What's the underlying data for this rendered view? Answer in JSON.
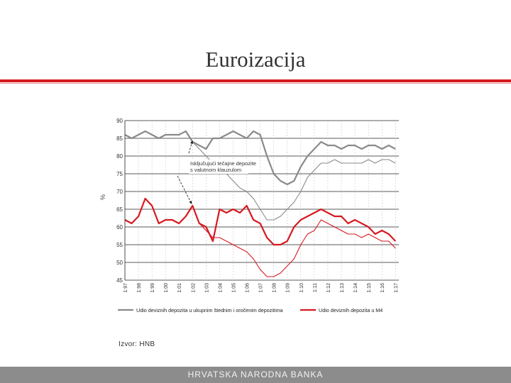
{
  "slide": {
    "title": "Euroizacija",
    "source": "Izvor: HNB",
    "footer": "HRVATSKA NARODNA BANKA"
  },
  "colors": {
    "accent": "#d71920",
    "grey_series": "#8a8a8a",
    "red_series": "#d71920",
    "footer_bg": "#8c8c8c"
  },
  "chart_data": {
    "type": "line",
    "ylabel": "%",
    "ylim": [
      45,
      90
    ],
    "yticks": [
      45,
      50,
      55,
      60,
      65,
      70,
      75,
      80,
      85,
      90
    ],
    "xlim": [
      1997,
      2017.25
    ],
    "xticks": [
      "1:97",
      "1:98",
      "1:99",
      "1:00",
      "1:01",
      "1:02",
      "1:03",
      "1:04",
      "1:05",
      "1:06",
      "1:07",
      "1:08",
      "1:09",
      "1:10",
      "1:11",
      "1:12",
      "1:13",
      "1:14",
      "1:15",
      "1:16",
      "1:17"
    ],
    "grid": true,
    "annotation": "Isključujući tečajne depozite s valutnom klauzulom",
    "legend_position": "bottom",
    "series": [
      {
        "name": "Udio deviznih depozita u ukupnim štednim i oročenim depozitima",
        "color": "grey",
        "style": "thick",
        "points": [
          [
            1997,
            86
          ],
          [
            1997.5,
            85
          ],
          [
            1998,
            86
          ],
          [
            1998.5,
            87
          ],
          [
            1999,
            86
          ],
          [
            1999.5,
            85
          ],
          [
            2000,
            86
          ],
          [
            2000.5,
            86
          ],
          [
            2001,
            86
          ],
          [
            2001.5,
            87
          ],
          [
            2002,
            84
          ],
          [
            2002.5,
            83
          ],
          [
            2003,
            82
          ],
          [
            2003.5,
            85
          ],
          [
            2004,
            85
          ],
          [
            2004.5,
            86
          ],
          [
            2005,
            87
          ],
          [
            2005.5,
            86
          ],
          [
            2006,
            85
          ],
          [
            2006.5,
            87
          ],
          [
            2007,
            86
          ],
          [
            2007.5,
            80
          ],
          [
            2008,
            75
          ],
          [
            2008.5,
            73
          ],
          [
            2009,
            72
          ],
          [
            2009.5,
            73
          ],
          [
            2010,
            77
          ],
          [
            2010.5,
            80
          ],
          [
            2011,
            82
          ],
          [
            2011.5,
            84
          ],
          [
            2012,
            83
          ],
          [
            2012.5,
            83
          ],
          [
            2013,
            82
          ],
          [
            2013.5,
            83
          ],
          [
            2014,
            83
          ],
          [
            2014.5,
            82
          ],
          [
            2015,
            83
          ],
          [
            2015.5,
            83
          ],
          [
            2016,
            82
          ],
          [
            2016.5,
            83
          ],
          [
            2017,
            82
          ]
        ]
      },
      {
        "name": "Isključujući tečajne depozite s valutnom klauzulom",
        "color": "grey",
        "style": "thin",
        "points": [
          [
            2002,
            84
          ],
          [
            2002.5,
            82
          ],
          [
            2003,
            80
          ],
          [
            2003.5,
            78
          ],
          [
            2004,
            76
          ],
          [
            2004.5,
            75
          ],
          [
            2005,
            73
          ],
          [
            2005.5,
            71
          ],
          [
            2006,
            70
          ],
          [
            2006.5,
            68
          ],
          [
            2007,
            65
          ],
          [
            2007.5,
            62
          ],
          [
            2008,
            62
          ],
          [
            2008.5,
            63
          ],
          [
            2009,
            65
          ],
          [
            2009.5,
            67
          ],
          [
            2010,
            70
          ],
          [
            2010.5,
            74
          ],
          [
            2011,
            76
          ],
          [
            2011.5,
            78
          ],
          [
            2012,
            78
          ],
          [
            2012.5,
            79
          ],
          [
            2013,
            78
          ],
          [
            2013.5,
            78
          ],
          [
            2014,
            78
          ],
          [
            2014.5,
            78
          ],
          [
            2015,
            79
          ],
          [
            2015.5,
            78
          ],
          [
            2016,
            79
          ],
          [
            2016.5,
            79
          ],
          [
            2017,
            78
          ]
        ]
      },
      {
        "name": "Udio deviznih depozita u M4",
        "color": "red",
        "style": "thick",
        "points": [
          [
            1997,
            62
          ],
          [
            1997.5,
            61
          ],
          [
            1998,
            63
          ],
          [
            1998.5,
            68
          ],
          [
            1999,
            66
          ],
          [
            1999.5,
            61
          ],
          [
            2000,
            62
          ],
          [
            2000.5,
            62
          ],
          [
            2001,
            61
          ],
          [
            2001.5,
            63
          ],
          [
            2002,
            66
          ],
          [
            2002.5,
            61
          ],
          [
            2003,
            60
          ],
          [
            2003.5,
            56
          ],
          [
            2004,
            65
          ],
          [
            2004.5,
            64
          ],
          [
            2005,
            65
          ],
          [
            2005.5,
            64
          ],
          [
            2006,
            66
          ],
          [
            2006.5,
            62
          ],
          [
            2007,
            61
          ],
          [
            2007.5,
            57
          ],
          [
            2008,
            55
          ],
          [
            2008.5,
            55
          ],
          [
            2009,
            56
          ],
          [
            2009.5,
            60
          ],
          [
            2010,
            62
          ],
          [
            2010.5,
            63
          ],
          [
            2011,
            64
          ],
          [
            2011.5,
            65
          ],
          [
            2012,
            64
          ],
          [
            2012.5,
            63
          ],
          [
            2013,
            63
          ],
          [
            2013.5,
            61
          ],
          [
            2014,
            62
          ],
          [
            2014.5,
            61
          ],
          [
            2015,
            60
          ],
          [
            2015.5,
            58
          ],
          [
            2016,
            59
          ],
          [
            2016.5,
            58
          ],
          [
            2017,
            56
          ]
        ]
      },
      {
        "name": "Isključujući tečajne depozite s valutnom klauzulom (M4)",
        "color": "red",
        "style": "thin",
        "points": [
          [
            2002,
            66
          ],
          [
            2002.5,
            61
          ],
          [
            2003,
            59
          ],
          [
            2003.5,
            57
          ],
          [
            2004,
            57
          ],
          [
            2004.5,
            56
          ],
          [
            2005,
            55
          ],
          [
            2005.5,
            54
          ],
          [
            2006,
            53
          ],
          [
            2006.5,
            51
          ],
          [
            2007,
            48
          ],
          [
            2007.5,
            46
          ],
          [
            2008,
            46
          ],
          [
            2008.5,
            47
          ],
          [
            2009,
            49
          ],
          [
            2009.5,
            51
          ],
          [
            2010,
            55
          ],
          [
            2010.5,
            58
          ],
          [
            2011,
            59
          ],
          [
            2011.5,
            62
          ],
          [
            2012,
            61
          ],
          [
            2012.5,
            60
          ],
          [
            2013,
            59
          ],
          [
            2013.5,
            58
          ],
          [
            2014,
            58
          ],
          [
            2014.5,
            57
          ],
          [
            2015,
            58
          ],
          [
            2015.5,
            57
          ],
          [
            2016,
            56
          ],
          [
            2016.5,
            56
          ],
          [
            2017,
            54
          ]
        ]
      }
    ]
  }
}
